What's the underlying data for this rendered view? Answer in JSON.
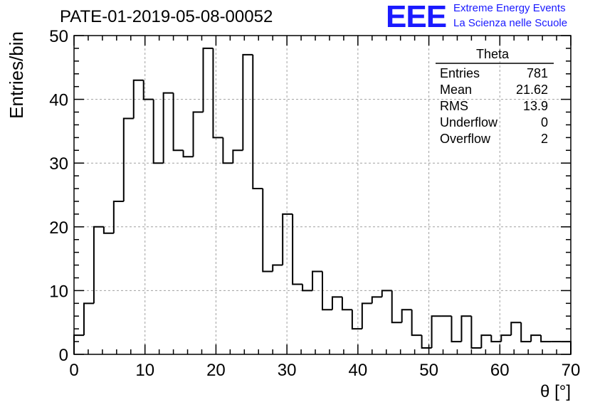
{
  "chart_data": {
    "type": "bar",
    "title": "PATE-01-2019-05-08-00052",
    "xlabel": "θ [°]",
    "ylabel": "Entries/bin",
    "xlim": [
      0,
      70
    ],
    "ylim": [
      0,
      50
    ],
    "bin_width": 1.4,
    "x_ticks": [
      "0",
      "10",
      "20",
      "30",
      "40",
      "50",
      "60",
      "70"
    ],
    "y_ticks": [
      "0",
      "10",
      "20",
      "30",
      "40",
      "50"
    ],
    "grid": true,
    "values": [
      3,
      8,
      20,
      19,
      24,
      37,
      43,
      40,
      30,
      41,
      32,
      31,
      38,
      48,
      34,
      30,
      32,
      47,
      26,
      13,
      14,
      22,
      11,
      10,
      13,
      7,
      9,
      7,
      4,
      8,
      9,
      10,
      5,
      7,
      3,
      1,
      6,
      6,
      2,
      6,
      1,
      3,
      2,
      3,
      5,
      2,
      3,
      2,
      2,
      2
    ]
  },
  "stats_box": {
    "title": "Theta",
    "rows": [
      {
        "label": "Entries",
        "value": "781"
      },
      {
        "label": "Mean",
        "value": "21.62"
      },
      {
        "label": "RMS",
        "value": "13.9"
      },
      {
        "label": "Underflow",
        "value": "0"
      },
      {
        "label": "Overflow",
        "value": "2"
      }
    ]
  },
  "logo": {
    "mark": "EEE",
    "line1": "Extreme Energy Events",
    "line2": "La Scienza nelle Scuole",
    "color": "#1a1aff"
  }
}
